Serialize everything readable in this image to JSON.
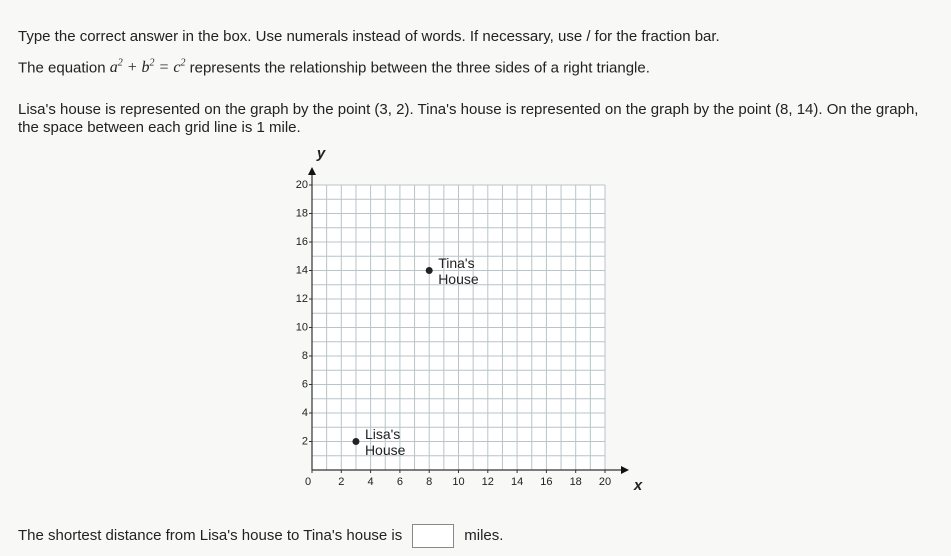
{
  "instruction": "Type the correct answer in the box. Use numerals instead of words. If necessary, use / for the fraction bar.",
  "equation_prefix": "The equation",
  "equation": {
    "terms": [
      {
        "base": "a",
        "exp": "2"
      },
      {
        "base": "b",
        "exp": "2"
      },
      {
        "base": "c",
        "exp": "2"
      }
    ],
    "plus": "+",
    "equals": "="
  },
  "equation_suffix": "represents the relationship between the three sides of a right triangle.",
  "problem": "Lisa's house is represented on the graph by the point (3, 2). Tina's house is represented on the graph by the point (8, 14). On the graph, the space between each grid line is 1 mile.",
  "chart_data": {
    "type": "scatter",
    "x_label": "x",
    "y_label": "y",
    "xlim": [
      0,
      20
    ],
    "ylim": [
      0,
      20
    ],
    "xticks": [
      0,
      2,
      4,
      6,
      8,
      10,
      12,
      14,
      16,
      18,
      20
    ],
    "yticks": [
      2,
      4,
      6,
      8,
      10,
      12,
      14,
      16,
      18,
      20
    ],
    "grid": true,
    "grid_step": 1,
    "color": "#222222",
    "points": [
      {
        "x": 3,
        "y": 2,
        "label": [
          "Lisa's",
          "House"
        ]
      },
      {
        "x": 8,
        "y": 14,
        "label": [
          "Tina's",
          "House"
        ]
      }
    ]
  },
  "answer": {
    "prefix": "The shortest distance from Lisa's house to Tina's house is",
    "suffix": "miles."
  }
}
